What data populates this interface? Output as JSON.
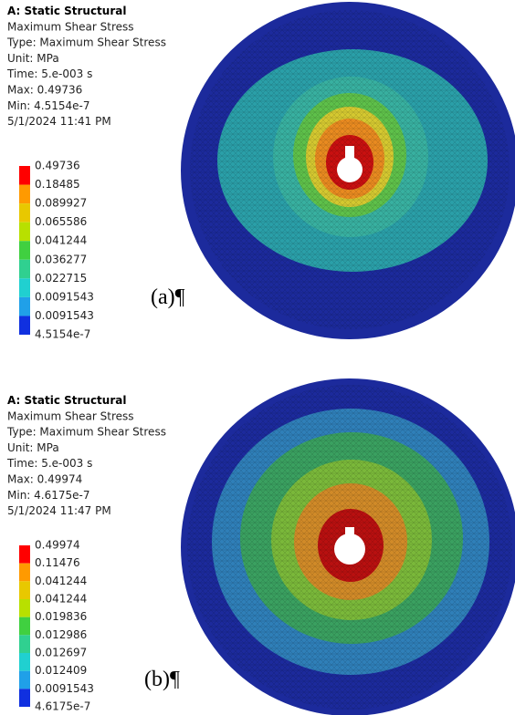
{
  "panels": [
    {
      "header": [
        "A: Static Structural",
        "Maximum Shear Stress",
        "Type: Maximum Shear Stress",
        "Unit: MPa",
        "Time: 5.e-003 s",
        "Max: 0.49736",
        "Min: 4.5154e-7",
        "5/1/2024 11:41 PM"
      ],
      "legend": [
        "0.49736",
        "0.18485",
        "0.089927",
        "0.065586",
        "0.041244",
        "0.036277",
        "0.022715",
        "0.0091543",
        "0.0091543",
        "4.5154e-7"
      ],
      "caption": "(a)¶"
    },
    {
      "header": [
        "A: Static Structural",
        "Maximum Shear Stress",
        "Type: Maximum Shear Stress",
        "Unit: MPa",
        "Time: 5.e-003 s",
        "Max: 0.49974",
        "Min: 4.6175e-7",
        "5/1/2024 11:47 PM"
      ],
      "legend": [
        "0.49974",
        "0.11476",
        "0.041244",
        "0.041244",
        "0.019836",
        "0.012986",
        "0.012697",
        "0.012409",
        "0.0091543",
        "4.6175e-7"
      ],
      "caption": "(b)¶"
    }
  ]
}
